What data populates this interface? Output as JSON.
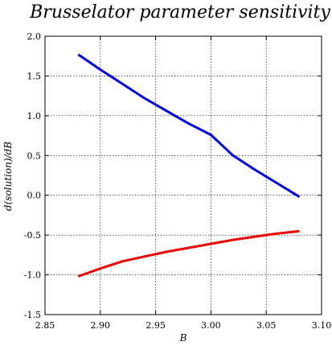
{
  "chart_data": {
    "type": "line",
    "title": "Brusselator parameter sensitivity",
    "xlabel": "B",
    "ylabel": "d(solution)/dB",
    "xlim": [
      2.85,
      3.1
    ],
    "ylim": [
      -1.5,
      2.0
    ],
    "xticks": [
      "2.85",
      "2.90",
      "2.95",
      "3.00",
      "3.05",
      "3.10"
    ],
    "yticks": [
      "-1.5",
      "-1.0",
      "-0.5",
      "0.0",
      "0.5",
      "1.0",
      "1.5",
      "2.0"
    ],
    "grid": true,
    "legend": "none",
    "series": [
      {
        "color": "#0000ee",
        "x": [
          2.88,
          2.9,
          2.92,
          2.94,
          2.96,
          2.98,
          3.0,
          3.02,
          3.04,
          3.06,
          3.08
        ],
        "y": [
          1.77,
          1.58,
          1.4,
          1.22,
          1.06,
          0.9,
          0.76,
          0.5,
          0.32,
          0.15,
          -0.02
        ]
      },
      {
        "color": "#ee0000",
        "x": [
          2.88,
          2.9,
          2.92,
          2.94,
          2.96,
          2.98,
          3.0,
          3.02,
          3.04,
          3.06,
          3.08
        ],
        "y": [
          -1.02,
          -0.92,
          -0.83,
          -0.77,
          -0.71,
          -0.66,
          -0.61,
          -0.56,
          -0.52,
          -0.48,
          -0.45
        ]
      }
    ]
  }
}
